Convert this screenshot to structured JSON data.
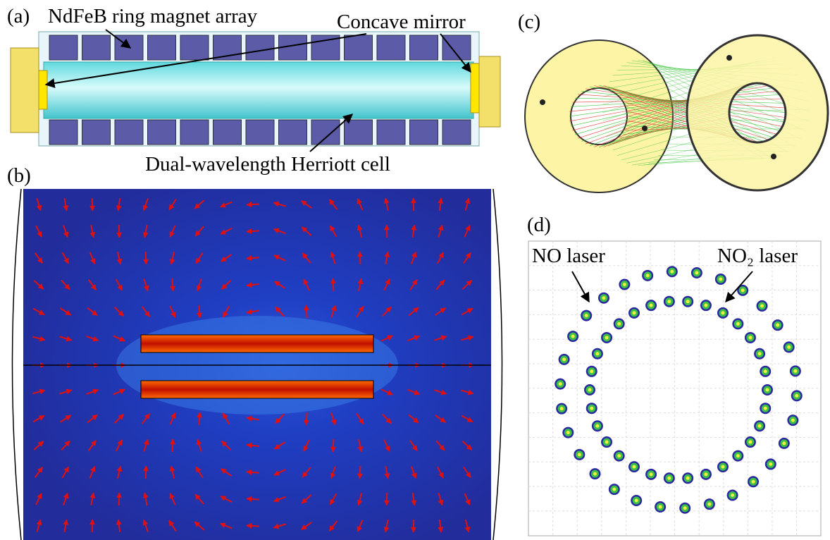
{
  "panels": {
    "a": {
      "label": "(a)",
      "magnet_label": "NdFeB ring magnet array",
      "mirror_label": "Concave mirror",
      "cell_label": "Dual-wavelength Herriott cell"
    },
    "b": {
      "label": "(b)"
    },
    "c": {
      "label": "(c)"
    },
    "d": {
      "label": "(d)",
      "no_label": "NO laser",
      "no2_label": "NO₂ laser"
    }
  }
}
